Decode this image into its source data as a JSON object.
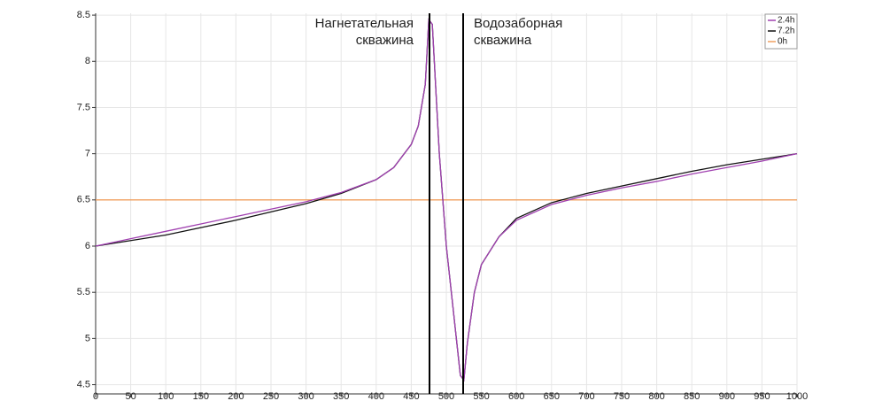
{
  "chart_data": {
    "type": "line",
    "x": [
      0,
      50,
      100,
      150,
      200,
      250,
      300,
      350,
      400,
      425,
      450,
      460,
      470,
      475,
      480,
      490,
      500,
      510,
      520,
      525,
      530,
      540,
      550,
      575,
      600,
      650,
      700,
      750,
      800,
      850,
      900,
      950,
      1000
    ],
    "series": [
      {
        "name": "2.4h",
        "color": "#a040b0",
        "values": [
          6,
          6.08,
          6.16,
          6.24,
          6.32,
          6.4,
          6.48,
          6.58,
          6.72,
          6.85,
          7.1,
          7.3,
          7.75,
          8.45,
          8.4,
          7.0,
          6.0,
          5.3,
          4.6,
          4.55,
          4.95,
          5.5,
          5.8,
          6.1,
          6.28,
          6.45,
          6.55,
          6.63,
          6.7,
          6.78,
          6.85,
          6.92,
          7
        ]
      },
      {
        "name": "7.2h",
        "color": "#111111",
        "values": [
          6,
          6.06,
          6.12,
          6.2,
          6.28,
          6.37,
          6.46,
          6.57,
          6.72,
          6.85,
          7.1,
          7.3,
          7.75,
          8.45,
          8.4,
          7.0,
          6.0,
          5.3,
          4.6,
          4.55,
          4.95,
          5.5,
          5.8,
          6.1,
          6.3,
          6.47,
          6.57,
          6.65,
          6.73,
          6.81,
          6.88,
          6.94,
          7
        ]
      },
      {
        "name": "0h",
        "color": "#f0a060",
        "values": [
          6.5,
          6.5,
          6.5,
          6.5,
          6.5,
          6.5,
          6.5,
          6.5,
          6.5,
          6.5,
          6.5,
          6.5,
          6.5,
          6.5,
          6.5,
          6.5,
          6.5,
          6.5,
          6.5,
          6.5,
          6.5,
          6.5,
          6.5,
          6.5,
          6.5,
          6.5,
          6.5,
          6.5,
          6.5,
          6.5,
          6.5,
          6.5,
          6.5
        ]
      }
    ],
    "wells": [
      {
        "x": 476,
        "lines": [
          "Нагнетательная",
          "скважина"
        ]
      },
      {
        "x": 524,
        "lines": [
          "Водозаборная",
          "скважина"
        ]
      }
    ],
    "xlim": [
      0,
      1000
    ],
    "ylim": [
      4.4,
      8.52
    ],
    "xticks": [
      0,
      50,
      100,
      150,
      200,
      250,
      300,
      350,
      400,
      450,
      500,
      550,
      600,
      650,
      700,
      750,
      800,
      850,
      900,
      950,
      1000
    ],
    "yticks": [
      4.5,
      5,
      5.5,
      6,
      6.5,
      7,
      7.5,
      8,
      8.5
    ],
    "grid": true
  }
}
